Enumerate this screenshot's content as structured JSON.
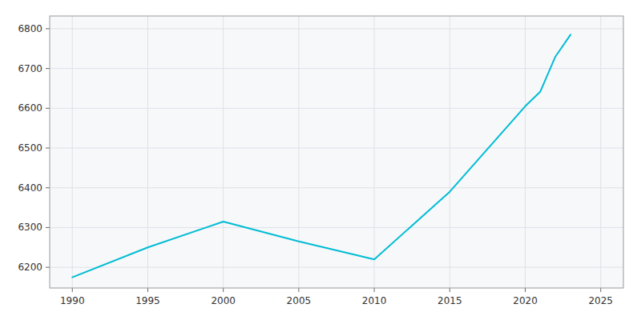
{
  "chart_data": {
    "type": "line",
    "x": [
      1990,
      1995,
      2000,
      2005,
      2010,
      2015,
      2020,
      2021,
      2022,
      2023
    ],
    "values": [
      6175,
      6250,
      6315,
      6265,
      6220,
      6390,
      6605,
      6642,
      6730,
      6785
    ],
    "color": "#00BCD4",
    "xlim": [
      1988.5,
      2026.5
    ],
    "ylim": [
      6148,
      6832
    ],
    "xticks": [
      1990,
      1995,
      2000,
      2005,
      2010,
      2015,
      2020,
      2025
    ],
    "yticks": [
      6200,
      6300,
      6400,
      6500,
      6600,
      6700,
      6800
    ],
    "grid": true
  }
}
